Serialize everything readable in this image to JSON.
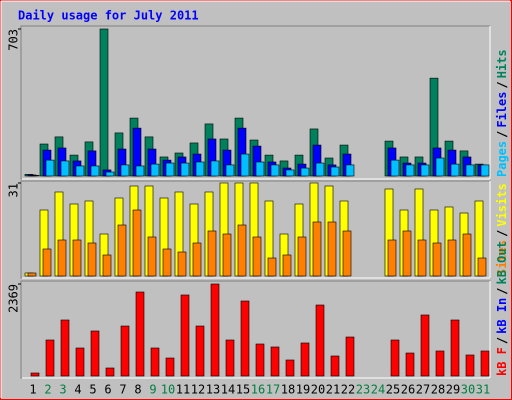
{
  "chart_data": [
    {
      "type": "bar",
      "title": "Daily usage for July 2011",
      "ylim": [
        0,
        703
      ],
      "yticks": [
        703
      ],
      "legend_separator": "/",
      "series": [
        {
          "name": "Pages",
          "color": "#00c0ff",
          "values": [
            3,
            76,
            72,
            48,
            48,
            19,
            53,
            48,
            57,
            62,
            62,
            67,
            72,
            53,
            105,
            67,
            53,
            29,
            38,
            62,
            43,
            53,
            0,
            0,
            76,
            53,
            53,
            86,
            57,
            53,
            53
          ]
        },
        {
          "name": "Files",
          "color": "#0000ff",
          "values": [
            5,
            124,
            134,
            72,
            120,
            29,
            129,
            229,
            129,
            76,
            91,
            105,
            177,
            124,
            229,
            143,
            67,
            38,
            57,
            148,
            53,
            105,
            0,
            0,
            134,
            62,
            62,
            134,
            124,
            91,
            53
          ]
        },
        {
          "name": "Hits",
          "color": "#00805c",
          "values": [
            8,
            153,
            187,
            100,
            163,
            703,
            206,
            277,
            187,
            91,
            110,
            158,
            249,
            177,
            277,
            172,
            100,
            72,
            100,
            225,
            86,
            148,
            0,
            0,
            167,
            91,
            91,
            468,
            167,
            120,
            57
          ]
        }
      ]
    },
    {
      "type": "bar",
      "ylim": [
        0,
        31
      ],
      "yticks": [
        31
      ],
      "series": [
        {
          "name": "Sites",
          "color": "#ff8000",
          "values": [
            1,
            9,
            12,
            12,
            11,
            7,
            17,
            22,
            13,
            9,
            8,
            11,
            15,
            14,
            17,
            13,
            6,
            7,
            13,
            18,
            18,
            15,
            0,
            0,
            12,
            15,
            12,
            11,
            12,
            14,
            6
          ]
        },
        {
          "name": "Visits",
          "color": "#ffff00",
          "values": [
            1,
            22,
            28,
            24,
            25,
            14,
            26,
            30,
            30,
            26,
            28,
            24,
            28,
            31,
            31,
            31,
            25,
            14,
            24,
            31,
            30,
            25,
            0,
            0,
            29,
            22,
            29,
            22,
            23,
            21,
            25
          ]
        }
      ]
    },
    {
      "type": "bar",
      "ylim": [
        0,
        2369
      ],
      "yticks": [
        2369
      ],
      "categories": [
        "1",
        "2",
        "3",
        "4",
        "5",
        "6",
        "7",
        "8",
        "9",
        "10",
        "11",
        "12",
        "13",
        "14",
        "15",
        "16",
        "17",
        "18",
        "19",
        "20",
        "21",
        "22",
        "23",
        "24",
        "25",
        "26",
        "27",
        "28",
        "29",
        "30",
        "31"
      ],
      "category_colors": [
        "#000000",
        "#008040",
        "#008040",
        "#000000",
        "#000000",
        "#000000",
        "#000000",
        "#000000",
        "#008040",
        "#008040",
        "#000000",
        "#000000",
        "#000000",
        "#000000",
        "#000000",
        "#008040",
        "#008040",
        "#000000",
        "#000000",
        "#000000",
        "#000000",
        "#000000",
        "#008040",
        "#008040",
        "#000000",
        "#000000",
        "#000000",
        "#000000",
        "#000000",
        "#008040",
        "#008040"
      ],
      "series": [
        {
          "name": "kB F",
          "color": "#ff0000",
          "values": [
            77,
            927,
            1442,
            721,
            1159,
            206,
            1287,
            2163,
            721,
            463,
            2086,
            1287,
            2369,
            927,
            1931,
            824,
            747,
            412,
            850,
            1828,
            515,
            1004,
            0,
            0,
            927,
            592,
            1571,
            644,
            1442,
            541,
            644
          ]
        },
        {
          "name": "kB In",
          "color": "#0000ff",
          "values": [
            0,
            0,
            0,
            0,
            0,
            0,
            0,
            0,
            0,
            0,
            0,
            0,
            0,
            0,
            0,
            0,
            0,
            0,
            0,
            0,
            0,
            0,
            0,
            0,
            0,
            0,
            0,
            0,
            0,
            0,
            0
          ]
        },
        {
          "name": "kB Out",
          "color": "#00805c",
          "values": [
            0,
            0,
            0,
            0,
            0,
            0,
            0,
            0,
            0,
            0,
            0,
            0,
            0,
            0,
            0,
            0,
            0,
            0,
            0,
            0,
            0,
            0,
            0,
            0,
            0,
            0,
            0,
            0,
            0,
            0,
            0
          ]
        }
      ]
    }
  ]
}
